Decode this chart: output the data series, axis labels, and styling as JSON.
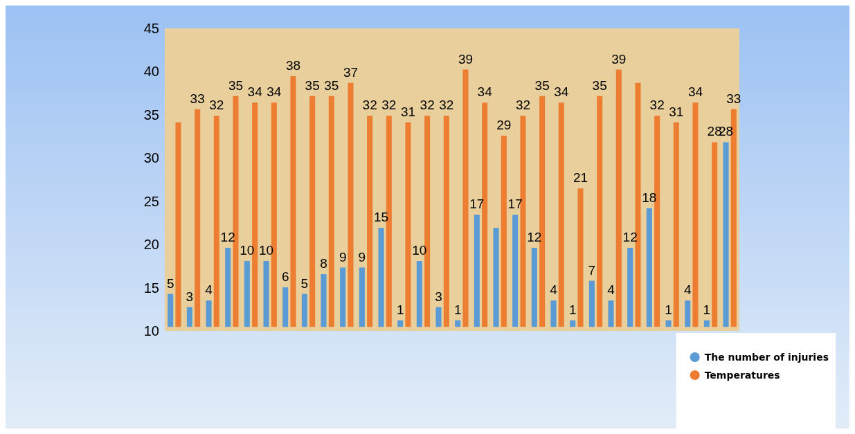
{
  "chart_data": {
    "type": "bar",
    "categories": [
      null,
      null,
      null,
      null,
      null,
      null,
      null,
      null,
      null,
      null,
      null,
      null,
      null,
      null,
      null,
      null,
      null,
      null,
      null,
      null,
      null,
      null,
      null,
      null,
      null,
      null,
      null,
      null,
      null,
      null
    ],
    "series": [
      {
        "name": "The number of injuries",
        "color": "#5b9bd5",
        "axis": "y2",
        "values": [
          5,
          3,
          4,
          12,
          10,
          10,
          6,
          5,
          8,
          9,
          9,
          15,
          1,
          10,
          3,
          1,
          17,
          15,
          17,
          12,
          4,
          1,
          7,
          4,
          12,
          18,
          1,
          4,
          1,
          28
        ],
        "value_labels": [
          "5",
          "3",
          "4",
          "12",
          "10",
          "10",
          "6",
          "5",
          "8",
          "9",
          "9",
          "15",
          "1",
          "10",
          "3",
          "1",
          "17",
          null,
          "17",
          "12",
          "4",
          "1",
          "7",
          "4",
          "12",
          "18",
          "1",
          "4",
          "1",
          "28"
        ]
      },
      {
        "name": "Temperatures",
        "color": "#ed7d31",
        "axis": "y2",
        "values": [
          31,
          33,
          32,
          35,
          34,
          34,
          38,
          35,
          35,
          37,
          32,
          32,
          31,
          32,
          32,
          39,
          34,
          29,
          32,
          35,
          34,
          21,
          35,
          39,
          37,
          32,
          31,
          34,
          28,
          33
        ],
        "value_labels": [
          null,
          "33",
          "32",
          "35",
          "34",
          "34",
          "38",
          "35",
          "35",
          "37",
          "32",
          "32",
          "31",
          "32",
          "32",
          "39",
          "34",
          "29",
          "32",
          "35",
          "34",
          "21",
          "35",
          "39",
          null,
          "32",
          "31",
          "34",
          "28",
          "33"
        ]
      }
    ],
    "ylim": [
      10,
      45
    ],
    "yticks": [
      10,
      15,
      20,
      25,
      30,
      35,
      40,
      45
    ],
    "y2lim": [
      -0.6,
      45.25
    ],
    "grid": false,
    "legend": "bottom right"
  }
}
